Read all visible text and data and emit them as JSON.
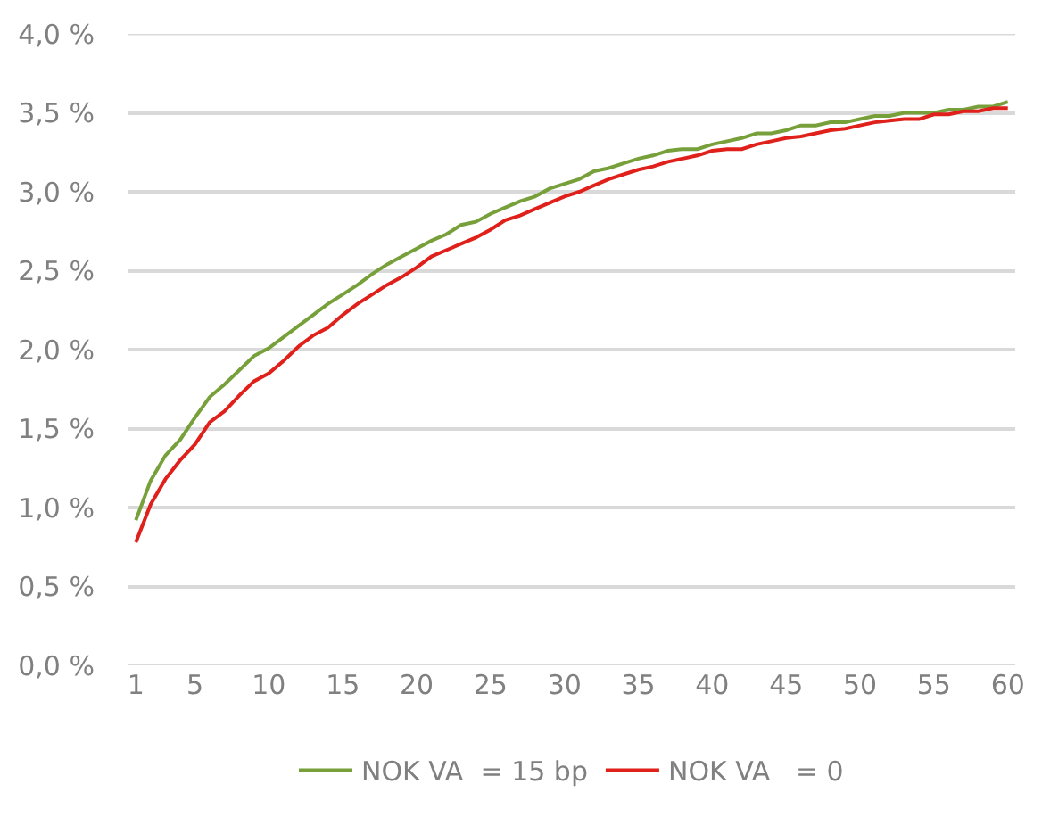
{
  "chart_data": {
    "type": "line",
    "x": [
      1,
      2,
      3,
      4,
      5,
      6,
      7,
      8,
      9,
      10,
      11,
      12,
      13,
      14,
      15,
      16,
      17,
      18,
      19,
      20,
      21,
      22,
      23,
      24,
      25,
      26,
      27,
      28,
      29,
      30,
      31,
      32,
      33,
      34,
      35,
      36,
      37,
      38,
      39,
      40,
      41,
      42,
      43,
      44,
      45,
      46,
      47,
      48,
      49,
      50,
      51,
      52,
      53,
      54,
      55,
      56,
      57,
      58,
      59,
      60
    ],
    "series": [
      {
        "name": "NOK VA  = 15 bp",
        "color": "#77a03a",
        "values": [
          0.92,
          1.17,
          1.33,
          1.43,
          1.57,
          1.7,
          1.78,
          1.87,
          1.96,
          2.01,
          2.08,
          2.15,
          2.22,
          2.29,
          2.35,
          2.41,
          2.48,
          2.54,
          2.59,
          2.64,
          2.69,
          2.73,
          2.79,
          2.81,
          2.86,
          2.9,
          2.94,
          2.97,
          3.02,
          3.05,
          3.08,
          3.13,
          3.15,
          3.18,
          3.21,
          3.23,
          3.26,
          3.27,
          3.27,
          3.3,
          3.32,
          3.34,
          3.37,
          3.37,
          3.39,
          3.42,
          3.42,
          3.44,
          3.44,
          3.46,
          3.48,
          3.48,
          3.5,
          3.5,
          3.5,
          3.52,
          3.52,
          3.54,
          3.54,
          3.57
        ]
      },
      {
        "name": "NOK VA   = 0",
        "color": "#e0201b",
        "values": [
          0.78,
          1.02,
          1.18,
          1.3,
          1.4,
          1.54,
          1.61,
          1.71,
          1.8,
          1.85,
          1.93,
          2.02,
          2.09,
          2.14,
          2.22,
          2.29,
          2.35,
          2.41,
          2.46,
          2.52,
          2.59,
          2.63,
          2.67,
          2.71,
          2.76,
          2.82,
          2.85,
          2.89,
          2.93,
          2.97,
          3.0,
          3.04,
          3.08,
          3.11,
          3.14,
          3.16,
          3.19,
          3.21,
          3.23,
          3.26,
          3.27,
          3.27,
          3.3,
          3.32,
          3.34,
          3.35,
          3.37,
          3.39,
          3.4,
          3.42,
          3.44,
          3.45,
          3.46,
          3.46,
          3.49,
          3.49,
          3.51,
          3.51,
          3.53,
          3.53
        ]
      }
    ],
    "xlim": [
      0.5,
      60.5
    ],
    "xticks": [
      1,
      5,
      10,
      15,
      20,
      25,
      30,
      35,
      40,
      45,
      50,
      55,
      60
    ],
    "ylim": [
      0,
      4
    ],
    "yticks": [
      {
        "value": 0,
        "label": "0,0 %"
      },
      {
        "value": 0.5,
        "label": "0,5 %"
      },
      {
        "value": 1,
        "label": "1,0 %"
      },
      {
        "value": 1.5,
        "label": "1,5 %"
      },
      {
        "value": 2,
        "label": "2,0 %"
      },
      {
        "value": 2.5,
        "label": "2,5 %"
      },
      {
        "value": 3,
        "label": "3,0 %"
      },
      {
        "value": 3.5,
        "label": "3,5 %"
      },
      {
        "value": 4,
        "label": "4,0 %"
      }
    ],
    "grid": "y",
    "legend": "bottom",
    "marker": "none",
    "line_style": "solid"
  }
}
